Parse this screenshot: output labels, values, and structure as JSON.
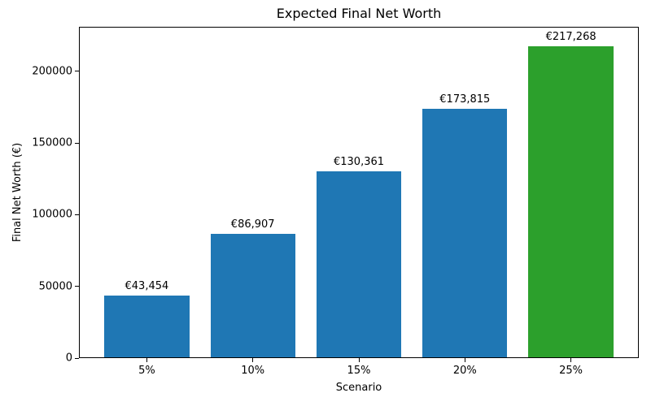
{
  "chart_data": {
    "type": "bar",
    "title": "Expected Final Net Worth",
    "xlabel": "Scenario",
    "ylabel": "Final Net Worth (€)",
    "categories": [
      "5%",
      "10%",
      "15%",
      "20%",
      "25%"
    ],
    "values": [
      43454,
      86907,
      130361,
      173815,
      217268
    ],
    "bar_labels": [
      "€43,454",
      "€86,907",
      "€130,361",
      "€173,815",
      "€217,268"
    ],
    "bar_colors": [
      "#1f77b4",
      "#1f77b4",
      "#1f77b4",
      "#1f77b4",
      "#2ca02c"
    ],
    "ytick_values": [
      0,
      50000,
      100000,
      150000,
      200000
    ],
    "ytick_labels": [
      "0",
      "50000",
      "100000",
      "150000",
      "200000"
    ],
    "ylim": [
      0,
      231000
    ],
    "grid": false,
    "legend": null,
    "spine_color": "#000000",
    "background_color": "#ffffff",
    "text_color": "#000000"
  }
}
